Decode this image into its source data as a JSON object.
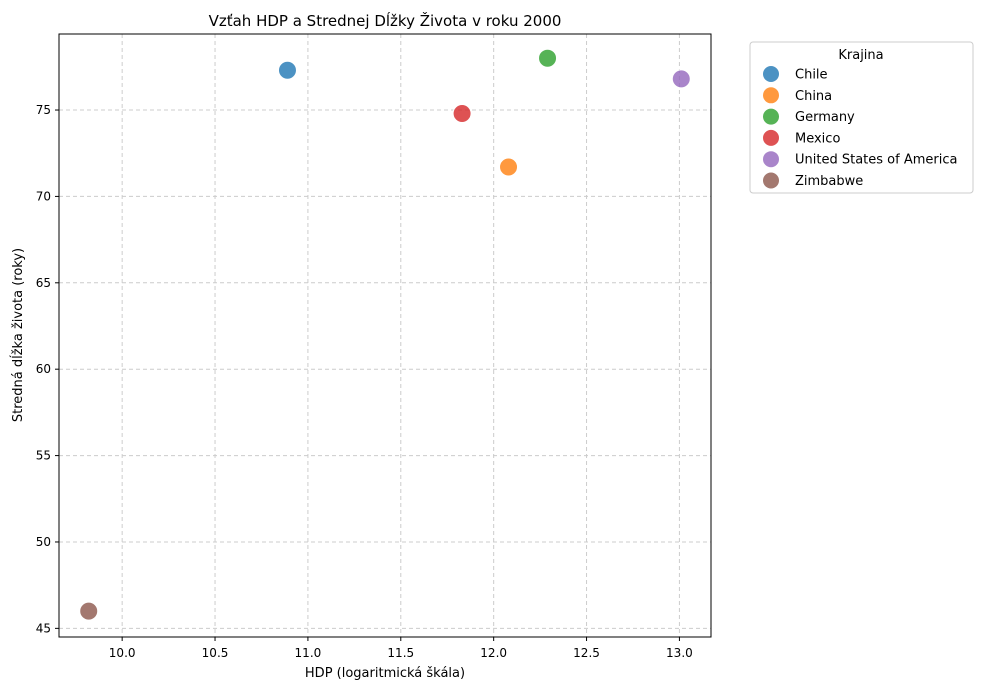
{
  "chart_data": {
    "type": "scatter",
    "title": "Vzťah HDP a Strednej Dĺžky Života v roku 2000",
    "xlabel": "HDP (logaritmická škála)",
    "ylabel": "Stredná dĺžka života (roky)",
    "xlim": [
      9.66,
      13.17
    ],
    "ylim": [
      44.5,
      79.4
    ],
    "xticks": [
      10.0,
      10.5,
      11.0,
      11.5,
      12.0,
      12.5,
      13.0
    ],
    "xtick_labels": [
      "10.0",
      "10.5",
      "11.0",
      "11.5",
      "12.0",
      "12.5",
      "13.0"
    ],
    "yticks": [
      45,
      50,
      55,
      60,
      65,
      70,
      75
    ],
    "ytick_labels": [
      "45",
      "50",
      "55",
      "60",
      "65",
      "70",
      "75"
    ],
    "grid": true,
    "legend": {
      "title": "Krajina",
      "placement": "outside-upper-right"
    },
    "series": [
      {
        "name": "Chile",
        "color": "#1f77b4",
        "x": [
          10.89
        ],
        "y": [
          77.3
        ]
      },
      {
        "name": "China",
        "color": "#ff7f0e",
        "x": [
          12.08
        ],
        "y": [
          71.7
        ]
      },
      {
        "name": "Germany",
        "color": "#2ca02c",
        "x": [
          12.29
        ],
        "y": [
          78.0
        ]
      },
      {
        "name": "Mexico",
        "color": "#d62728",
        "x": [
          11.83
        ],
        "y": [
          74.8
        ]
      },
      {
        "name": "United States of America",
        "color": "#9467bd",
        "x": [
          13.01
        ],
        "y": [
          76.8
        ]
      },
      {
        "name": "Zimbabwe",
        "color": "#8c564b",
        "x": [
          9.82
        ],
        "y": [
          46.0
        ]
      }
    ]
  }
}
